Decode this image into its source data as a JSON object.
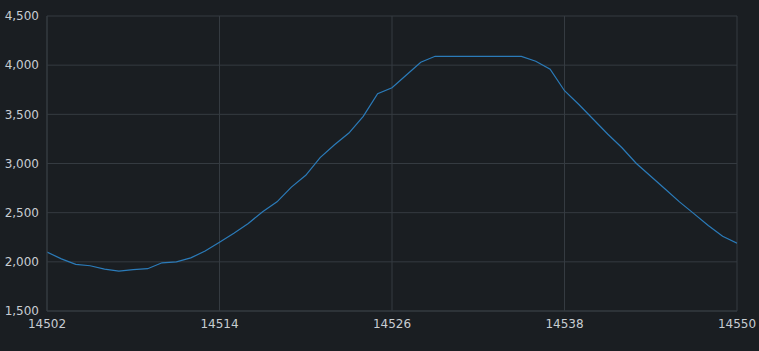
{
  "chart_data": {
    "type": "line",
    "color": "#2b7bb9",
    "grid": true,
    "x": [
      14502,
      14503,
      14504,
      14505,
      14506,
      14507,
      14508,
      14509,
      14510,
      14511,
      14512,
      14513,
      14514,
      14515,
      14516,
      14517,
      14518,
      14519,
      14520,
      14521,
      14522,
      14523,
      14524,
      14525,
      14526,
      14527,
      14528,
      14529,
      14530,
      14531,
      14532,
      14533,
      14534,
      14535,
      14536,
      14537,
      14538,
      14539,
      14540,
      14541,
      14542,
      14543,
      14544,
      14545,
      14546,
      14547,
      14548,
      14549,
      14550
    ],
    "values": [
      2100,
      2030,
      1975,
      1960,
      1925,
      1905,
      1920,
      1930,
      1990,
      2000,
      2040,
      2110,
      2200,
      2290,
      2390,
      2510,
      2610,
      2760,
      2880,
      3060,
      3190,
      3310,
      3480,
      3710,
      3770,
      3900,
      4030,
      4090,
      4090,
      4090,
      4090,
      4090,
      4090,
      4090,
      4040,
      3960,
      3740,
      3600,
      3450,
      3300,
      3160,
      3000,
      2870,
      2740,
      2610,
      2490,
      2370,
      2260,
      2190
    ],
    "xlim": [
      14502,
      14550
    ],
    "xticks": [
      14502,
      14514,
      14526,
      14538,
      14550
    ],
    "ylim": [
      1500,
      4500
    ],
    "yticks": [
      {
        "value": 1500,
        "label": "1,500"
      },
      {
        "value": 2000,
        "label": "2,000"
      },
      {
        "value": 2500,
        "label": "2,500"
      },
      {
        "value": 3000,
        "label": "3,000"
      },
      {
        "value": 3500,
        "label": "3,500"
      },
      {
        "value": 4000,
        "label": "4,000"
      },
      {
        "value": 4500,
        "label": "4,500"
      }
    ]
  }
}
